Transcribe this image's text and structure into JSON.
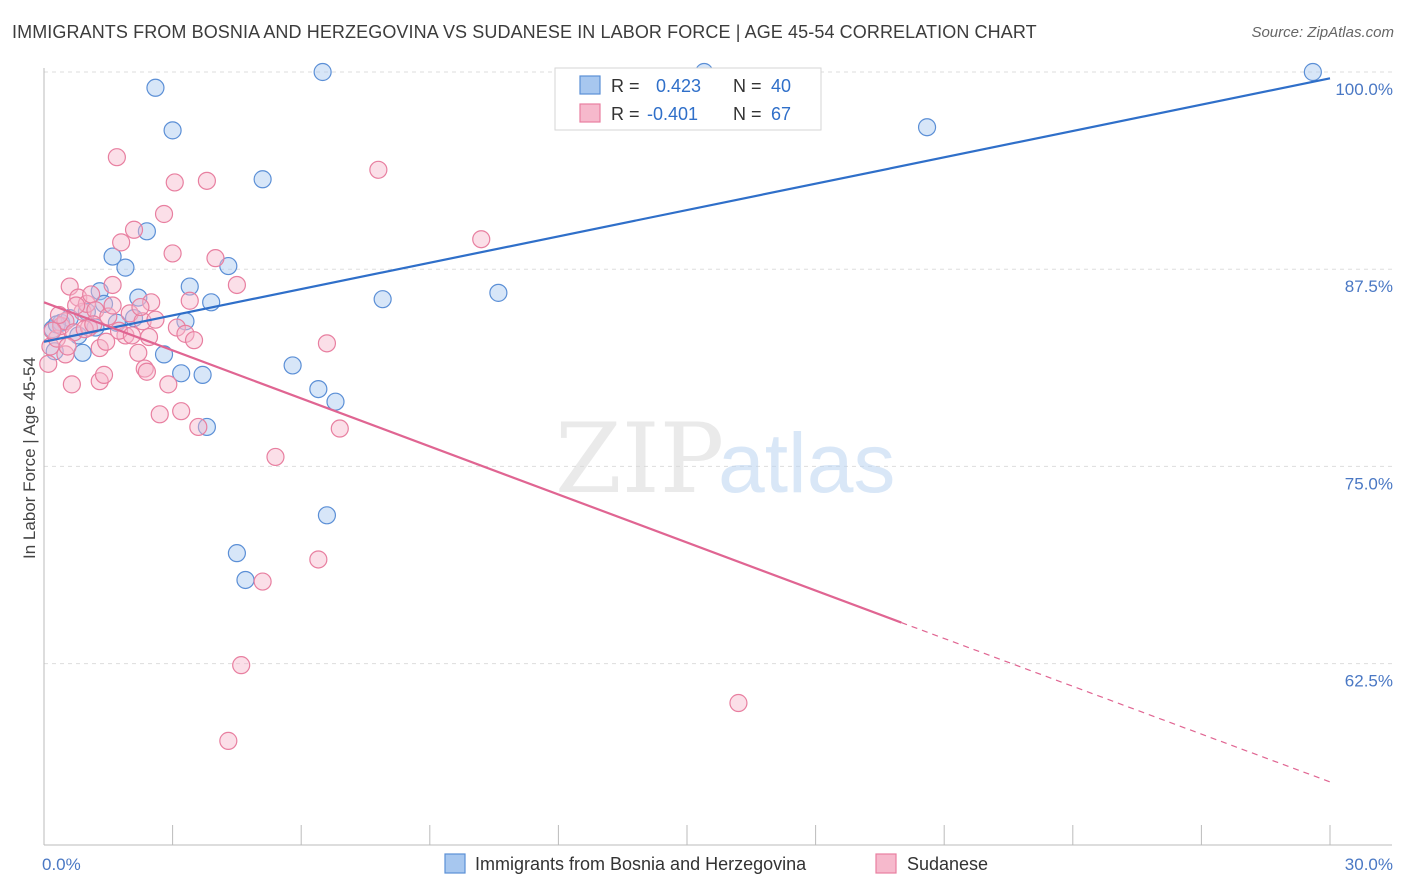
{
  "title": "IMMIGRANTS FROM BOSNIA AND HERZEGOVINA VS SUDANESE IN LABOR FORCE | AGE 45-54 CORRELATION CHART",
  "source": "Source: ZipAtlas.com",
  "watermark": {
    "zip": "ZIP",
    "atlas": "atlas"
  },
  "colors": {
    "blue_fill": "#a7c7ef",
    "blue_stroke": "#5b8fd6",
    "blue_line": "#2f6fc9",
    "pink_fill": "#f6b9cc",
    "pink_stroke": "#e87fa0",
    "pink_line": "#e06592",
    "axis_text": "#4a78c4",
    "grid": "#dddddd"
  },
  "legend": {
    "r_label": "R =",
    "n_label": "N =",
    "rows": [
      {
        "r": "0.423",
        "n": "40"
      },
      {
        "r": "-0.401",
        "n": "67"
      }
    ]
  },
  "bottom_legend": [
    "Immigrants from Bosnia and Herzegovina",
    "Sudanese"
  ],
  "chart_data": {
    "type": "scatter",
    "xlabel": "",
    "ylabel": "In Labor Force | Age 45-54",
    "xlim": [
      0,
      30
    ],
    "ylim": [
      51,
      100
    ],
    "x_tick_labels": [
      "0.0%",
      "30.0%"
    ],
    "y_ticks": [
      62.5,
      75.0,
      87.5,
      100.0
    ],
    "y_tick_labels": [
      "62.5%",
      "75.0%",
      "87.5%",
      "100.0%"
    ],
    "grid": true,
    "series": [
      {
        "name": "Immigrants from Bosnia and Herzegovina",
        "points": [
          [
            0.2,
            83.7
          ],
          [
            0.25,
            82.3
          ],
          [
            0.4,
            84.1
          ],
          [
            0.6,
            84.4
          ],
          [
            0.8,
            83.3
          ],
          [
            0.9,
            82.2
          ],
          [
            1.0,
            84.8
          ],
          [
            1.3,
            86.1
          ],
          [
            1.4,
            85.3
          ],
          [
            1.6,
            88.3
          ],
          [
            1.7,
            84.1
          ],
          [
            1.9,
            87.6
          ],
          [
            2.1,
            84.4
          ],
          [
            2.2,
            85.7
          ],
          [
            2.4,
            89.9
          ],
          [
            2.6,
            99.0
          ],
          [
            2.8,
            82.1
          ],
          [
            3.0,
            96.3
          ],
          [
            3.2,
            80.9
          ],
          [
            3.3,
            84.2
          ],
          [
            3.4,
            86.4
          ],
          [
            3.7,
            80.8
          ],
          [
            3.8,
            77.5
          ],
          [
            3.9,
            85.4
          ],
          [
            4.3,
            87.7
          ],
          [
            4.5,
            69.5
          ],
          [
            4.7,
            67.8
          ],
          [
            5.1,
            93.2
          ],
          [
            5.8,
            81.4
          ],
          [
            6.4,
            79.9
          ],
          [
            6.5,
            100.0
          ],
          [
            6.6,
            71.9
          ],
          [
            6.8,
            79.1
          ],
          [
            7.9,
            85.6
          ],
          [
            10.6,
            86.0
          ],
          [
            15.4,
            100.0
          ],
          [
            20.6,
            96.5
          ],
          [
            29.6,
            100.0
          ],
          [
            0.3,
            84.0
          ],
          [
            1.2,
            83.8
          ]
        ],
        "trend": {
          "x": [
            0,
            30
          ],
          "y": [
            82.9,
            99.6
          ]
        }
      },
      {
        "name": "Sudanese",
        "points": [
          [
            0.1,
            81.5
          ],
          [
            0.15,
            82.6
          ],
          [
            0.3,
            83.1
          ],
          [
            0.4,
            83.9
          ],
          [
            0.5,
            84.2
          ],
          [
            0.5,
            82.1
          ],
          [
            0.6,
            86.4
          ],
          [
            0.65,
            80.2
          ],
          [
            0.7,
            83.5
          ],
          [
            0.8,
            85.7
          ],
          [
            0.9,
            84.8
          ],
          [
            1.0,
            85.3
          ],
          [
            1.05,
            83.8
          ],
          [
            1.1,
            85.9
          ],
          [
            1.2,
            84.9
          ],
          [
            1.3,
            80.4
          ],
          [
            1.3,
            82.5
          ],
          [
            1.4,
            80.8
          ],
          [
            1.5,
            84.5
          ],
          [
            1.6,
            85.2
          ],
          [
            1.6,
            86.5
          ],
          [
            1.7,
            94.6
          ],
          [
            1.8,
            89.2
          ],
          [
            1.9,
            83.3
          ],
          [
            2.0,
            84.7
          ],
          [
            2.1,
            90.0
          ],
          [
            2.2,
            82.2
          ],
          [
            2.3,
            84.2
          ],
          [
            2.35,
            81.2
          ],
          [
            2.4,
            81.0
          ],
          [
            2.5,
            85.4
          ],
          [
            2.6,
            84.3
          ],
          [
            2.7,
            78.3
          ],
          [
            2.8,
            91.0
          ],
          [
            2.9,
            80.2
          ],
          [
            3.0,
            88.5
          ],
          [
            3.05,
            93.0
          ],
          [
            3.1,
            83.8
          ],
          [
            3.2,
            78.5
          ],
          [
            3.3,
            83.4
          ],
          [
            3.4,
            85.5
          ],
          [
            3.5,
            83.0
          ],
          [
            3.6,
            77.5
          ],
          [
            3.8,
            93.1
          ],
          [
            4.0,
            88.2
          ],
          [
            4.5,
            86.5
          ],
          [
            4.6,
            62.4
          ],
          [
            4.3,
            57.6
          ],
          [
            5.1,
            67.7
          ],
          [
            5.4,
            75.6
          ],
          [
            6.4,
            69.1
          ],
          [
            6.6,
            82.8
          ],
          [
            6.9,
            77.4
          ],
          [
            7.8,
            93.8
          ],
          [
            10.2,
            89.4
          ],
          [
            16.2,
            60.0
          ],
          [
            0.2,
            83.6
          ],
          [
            0.35,
            84.6
          ],
          [
            0.55,
            82.6
          ],
          [
            0.75,
            85.2
          ],
          [
            0.95,
            83.7
          ],
          [
            1.15,
            84.0
          ],
          [
            1.45,
            82.9
          ],
          [
            1.75,
            83.6
          ],
          [
            2.05,
            83.3
          ],
          [
            2.25,
            85.1
          ],
          [
            2.45,
            83.2
          ]
        ],
        "trend": {
          "x": [
            0,
            20
          ],
          "y": [
            85.4,
            65.1
          ]
        },
        "trend_dashed": {
          "x": [
            20,
            30
          ],
          "y": [
            65.1,
            55.0
          ]
        }
      }
    ]
  }
}
